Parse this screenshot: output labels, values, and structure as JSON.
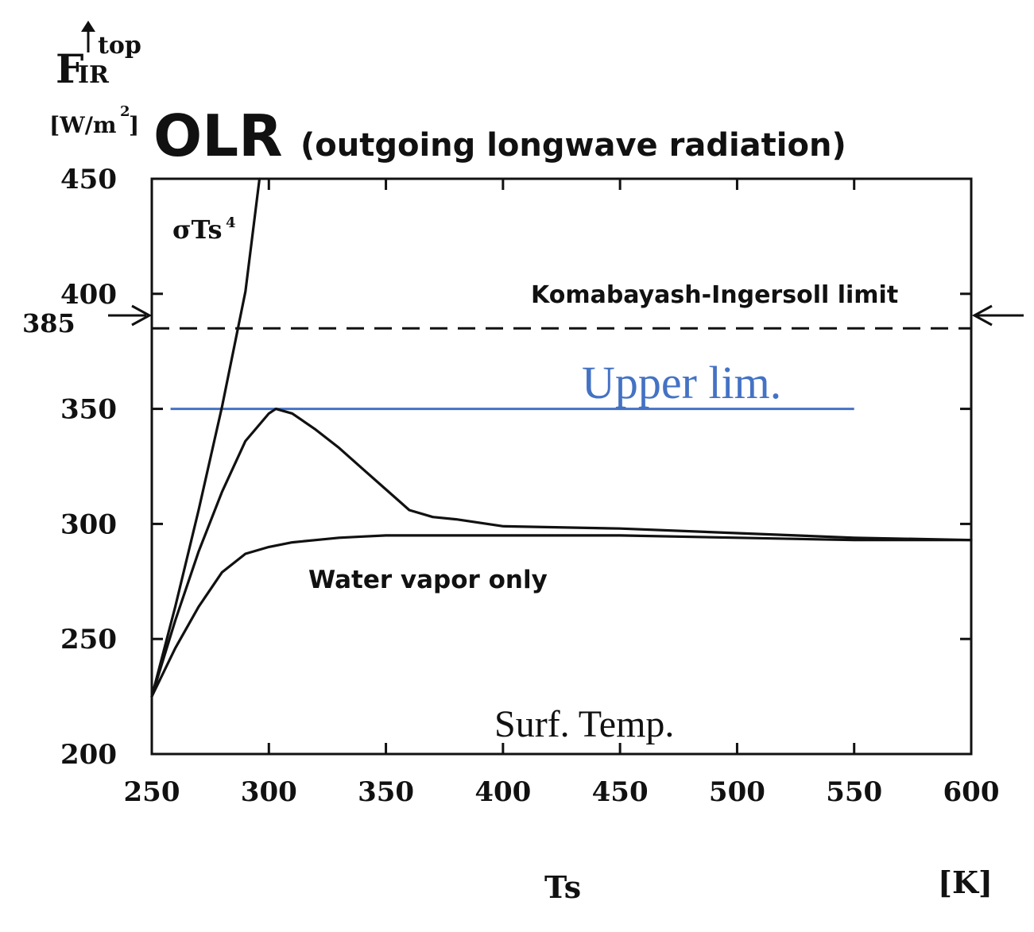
{
  "chart_data": {
    "type": "line",
    "title": "OLR",
    "subtitle": "(outgoing longwave radiation)",
    "ylabel_main": "F",
    "ylabel_sub": "IR",
    "ylabel_sup": "top",
    "ylabel_units": "[W/m",
    "ylabel_units_sup": "2",
    "ylabel_units_close": "]",
    "xlabel": "Ts",
    "xunits": "[K]",
    "xlim": [
      250,
      600
    ],
    "ylim": [
      200,
      450
    ],
    "xticks": [
      250,
      300,
      350,
      400,
      450,
      500,
      550,
      600
    ],
    "yticks": [
      200,
      250,
      300,
      350,
      400,
      450
    ],
    "xtick_labels": [
      "250",
      "300",
      "350",
      "400",
      "450",
      "500",
      "550",
      "600"
    ],
    "ytick_labels": [
      "200",
      "250",
      "300",
      "350",
      "400",
      "450"
    ],
    "grid": false,
    "series": [
      {
        "label": "σTs",
        "label_sup": "4",
        "style": "solid",
        "color": "#111111",
        "x": [
          250,
          260,
          270,
          280,
          290,
          296
        ],
        "y": [
          225,
          264,
          306,
          351,
          401,
          450
        ]
      },
      {
        "style": "solid",
        "color": "#111111",
        "x": [
          250,
          260,
          270,
          280,
          290,
          300,
          303,
          310,
          320,
          330,
          340,
          350,
          360,
          370,
          380,
          400,
          450,
          500,
          550,
          600
        ],
        "y": [
          225,
          258,
          288,
          314,
          336,
          348,
          350,
          348,
          341,
          333,
          324,
          315,
          306,
          303,
          302,
          299,
          298,
          296,
          294,
          293
        ]
      },
      {
        "label": "Water vapor  only",
        "style": "solid",
        "color": "#111111",
        "x": [
          250,
          260,
          270,
          280,
          290,
          300,
          310,
          320,
          330,
          340,
          350,
          400,
          450,
          500,
          550,
          600
        ],
        "y": [
          225,
          246,
          264,
          279,
          287,
          290,
          292,
          293,
          294,
          294.5,
          295,
          295,
          295,
          294,
          293,
          293
        ]
      }
    ],
    "reference_lines": [
      {
        "label": "Komabayash-Ingersoll limit",
        "y": 385,
        "arrow_value_label": "385",
        "style": "dashed",
        "color": "#111111"
      },
      {
        "label": "Upper lim.",
        "y": 350,
        "x_range": [
          258,
          550
        ],
        "style": "solid",
        "color": "#4472c4"
      }
    ],
    "annotations": [
      {
        "text": "Surf. Temp."
      }
    ]
  }
}
